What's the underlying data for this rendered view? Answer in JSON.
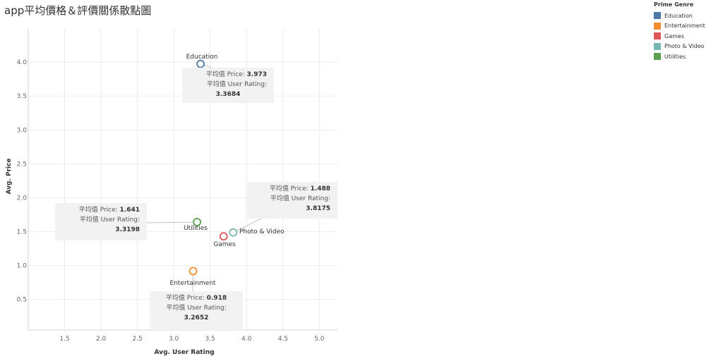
{
  "title": "app平均價格＆評價關係散點圖",
  "legend": {
    "title": "Prime Genre",
    "items": [
      {
        "label": "Education",
        "color": "#4e79a7"
      },
      {
        "label": "Entertainment",
        "color": "#f28e2b"
      },
      {
        "label": "Games",
        "color": "#e15759"
      },
      {
        "label": "Photo & Video",
        "color": "#76b7b2"
      },
      {
        "label": "Utilities",
        "color": "#59a14f"
      }
    ]
  },
  "tooltips": {
    "price_label": "平均值 Price:",
    "rating_label": "平均值 User Rating:",
    "education": {
      "price": "3.973",
      "rating": "3.3684"
    },
    "photo_video": {
      "price": "1.488",
      "rating": "3.8175"
    },
    "utilities": {
      "price": "1.641",
      "rating": "3.3198"
    },
    "entertainment": {
      "price": "0.918",
      "rating": "3.2652"
    }
  },
  "chart_data": {
    "type": "scatter",
    "title": "app平均價格＆評價關係散點圖",
    "xlabel": "Avg. User Rating",
    "ylabel": "Avg. Price",
    "xlim": [
      1.0,
      5.25
    ],
    "ylim": [
      0.05,
      4.5
    ],
    "xticks": [
      1.5,
      2.0,
      2.5,
      3.0,
      3.5,
      4.0,
      4.5,
      5.0
    ],
    "yticks": [
      0.5,
      1.0,
      1.5,
      2.0,
      2.5,
      3.0,
      3.5,
      4.0
    ],
    "grid": true,
    "legend_position": "top-right",
    "points": [
      {
        "name": "Education",
        "x": 3.3684,
        "y": 3.973,
        "color": "#4e79a7"
      },
      {
        "name": "Entertainment",
        "x": 3.2652,
        "y": 0.918,
        "color": "#f28e2b"
      },
      {
        "name": "Games",
        "x": 3.685,
        "y": 1.43,
        "color": "#e15759"
      },
      {
        "name": "Photo & Video",
        "x": 3.8175,
        "y": 1.488,
        "color": "#76b7b2"
      },
      {
        "name": "Utilities",
        "x": 3.3198,
        "y": 1.641,
        "color": "#59a14f"
      }
    ]
  }
}
